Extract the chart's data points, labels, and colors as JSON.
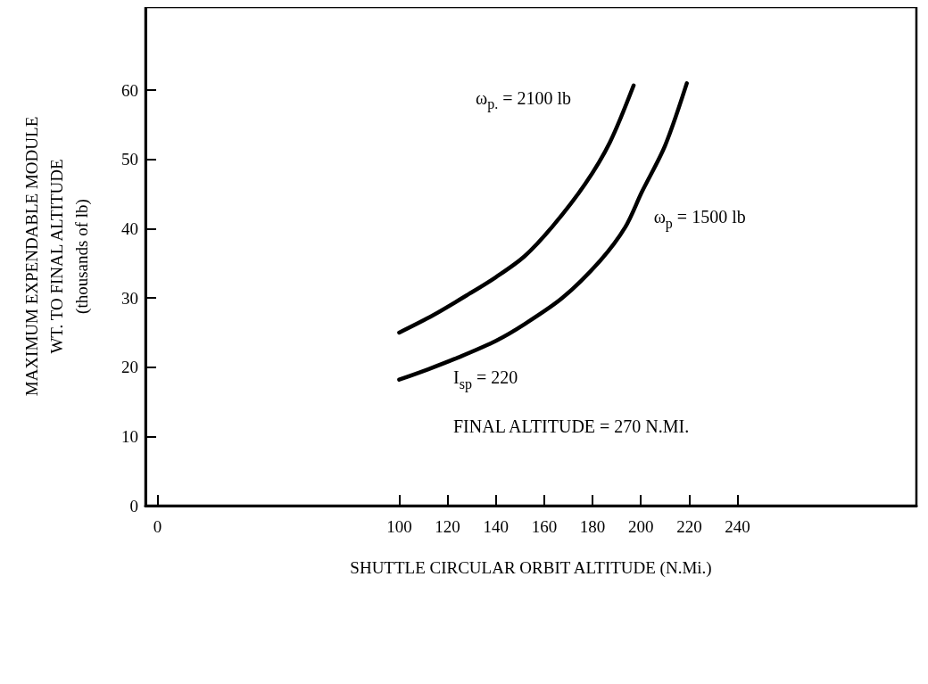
{
  "chart_data": {
    "type": "line",
    "xlabel": "SHUTTLE CIRCULAR ORBIT ALTITUDE (N.Mi.)",
    "ylabel": "MAXIMUM EXPENDABLE MODULE\nWT. TO FINAL ALTITUDE\n(thousands of lb)",
    "xlim": [
      -5,
      314
    ],
    "xticks": [
      0,
      100,
      120,
      140,
      160,
      180,
      200,
      220,
      240
    ],
    "ylim": [
      0,
      72
    ],
    "yticks": [
      0,
      10,
      20,
      30,
      40,
      50,
      60
    ],
    "series": [
      {
        "name": "ω$_{p.}$ = 2100 lb",
        "color": "#000000",
        "x": [
          100,
          114,
          129,
          140,
          151.8,
          163.6,
          177,
          187.2,
          197
        ],
        "values": [
          25,
          27.5,
          30.6,
          33,
          36,
          40.4,
          46.5,
          52.5,
          60.7
        ]
      },
      {
        "name": "ω$_{p}$ = 1500 lb",
        "color": "#000000",
        "x": [
          100,
          112,
          124.4,
          140,
          151.8,
          167.5,
          183.2,
          193.5,
          200.4,
          210,
          219
        ],
        "values": [
          18.2,
          19.7,
          21.4,
          23.8,
          26.2,
          30,
          35.4,
          40.2,
          45.3,
          52,
          61
        ]
      }
    ],
    "annotations": [
      "I$_{sp}$ = 220",
      "FINAL ALTITUDE = 270 N.MI."
    ],
    "grid": false,
    "legend": false,
    "marker": "none",
    "line_style": "solid"
  }
}
